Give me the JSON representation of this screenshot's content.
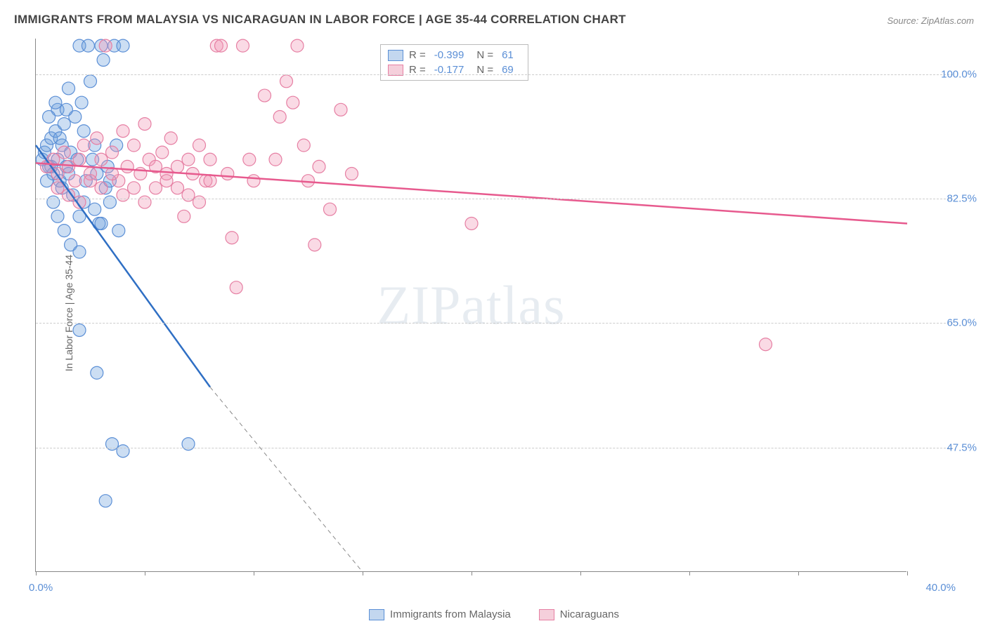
{
  "title": "IMMIGRANTS FROM MALAYSIA VS NICARAGUAN IN LABOR FORCE | AGE 35-44 CORRELATION CHART",
  "source": "Source: ZipAtlas.com",
  "ylabel": "In Labor Force | Age 35-44",
  "watermark": "ZIPatlas",
  "chart": {
    "type": "scatter",
    "background_color": "#ffffff",
    "grid_color": "#cccccc",
    "axis_color": "#888888",
    "xlim": [
      0,
      40
    ],
    "ylim": [
      30,
      105
    ],
    "xtick_positions": [
      0,
      5,
      10,
      15,
      20,
      25,
      30,
      35,
      40
    ],
    "xtick_labels": {
      "left": "0.0%",
      "right": "40.0%"
    },
    "ytick_positions": [
      47.5,
      65.0,
      82.5,
      100.0
    ],
    "ytick_labels": [
      "47.5%",
      "65.0%",
      "82.5%",
      "100.0%"
    ],
    "marker_radius": 9,
    "marker_opacity": 0.45,
    "label_color": "#5b8fd6",
    "label_fontsize": 15,
    "title_fontsize": 17,
    "title_color": "#444444"
  },
  "series": [
    {
      "id": "malaysia",
      "label": "Immigrants from Malaysia",
      "color_fill": "rgba(108,160,220,0.35)",
      "color_stroke": "#5b8fd6",
      "swatch_fill": "#c3d7ef",
      "swatch_border": "#5b8fd6",
      "R": "-0.399",
      "N": "61",
      "regression": {
        "x1": 0,
        "y1": 90,
        "x2_solid": 8.0,
        "y2_solid": 56,
        "x2_dash": 15.0,
        "y2_dash": 30,
        "line_color": "#2f6fc4",
        "line_width": 2.5
      },
      "points": [
        [
          0.3,
          88
        ],
        [
          0.4,
          89
        ],
        [
          0.5,
          90
        ],
        [
          0.6,
          87
        ],
        [
          0.7,
          91
        ],
        [
          0.8,
          86
        ],
        [
          0.9,
          92
        ],
        [
          1.0,
          88
        ],
        [
          1.0,
          95
        ],
        [
          1.1,
          85
        ],
        [
          1.2,
          90
        ],
        [
          1.2,
          84
        ],
        [
          1.3,
          93
        ],
        [
          1.4,
          87
        ],
        [
          1.5,
          98
        ],
        [
          1.5,
          86
        ],
        [
          1.6,
          89
        ],
        [
          1.7,
          83
        ],
        [
          1.8,
          94
        ],
        [
          1.9,
          88
        ],
        [
          2.0,
          80
        ],
        [
          2.0,
          104
        ],
        [
          2.1,
          96
        ],
        [
          2.2,
          92
        ],
        [
          2.3,
          85
        ],
        [
          2.4,
          104
        ],
        [
          2.5,
          99
        ],
        [
          2.6,
          88
        ],
        [
          2.7,
          81
        ],
        [
          2.8,
          86
        ],
        [
          2.9,
          79
        ],
        [
          3.0,
          104
        ],
        [
          3.1,
          102
        ],
        [
          3.2,
          84
        ],
        [
          3.3,
          87
        ],
        [
          3.4,
          82
        ],
        [
          3.6,
          104
        ],
        [
          3.7,
          90
        ],
        [
          3.8,
          78
        ],
        [
          4.0,
          104
        ],
        [
          1.0,
          80
        ],
        [
          1.3,
          78
        ],
        [
          1.6,
          76
        ],
        [
          2.0,
          75
        ],
        [
          2.2,
          82
        ],
        [
          2.7,
          90
        ],
        [
          3.0,
          79
        ],
        [
          3.4,
          85
        ],
        [
          2.0,
          64
        ],
        [
          2.8,
          58
        ],
        [
          3.5,
          48
        ],
        [
          4.0,
          47
        ],
        [
          3.2,
          40
        ],
        [
          7.0,
          48
        ],
        [
          0.8,
          82
        ],
        [
          1.1,
          91
        ],
        [
          1.4,
          95
        ],
        [
          0.6,
          94
        ],
        [
          0.9,
          96
        ],
        [
          0.5,
          85
        ],
        [
          0.7,
          87
        ]
      ]
    },
    {
      "id": "nicaraguans",
      "label": "Nicaraguans",
      "color_fill": "rgba(240,150,180,0.35)",
      "color_stroke": "#e67fa3",
      "swatch_fill": "#f5cfdb",
      "swatch_border": "#e67fa3",
      "R": "-0.177",
      "N": "69",
      "regression": {
        "x1": 0,
        "y1": 87.5,
        "x2_solid": 40,
        "y2_solid": 79,
        "line_color": "#e75a8e",
        "line_width": 2.5
      },
      "points": [
        [
          0.5,
          87
        ],
        [
          0.8,
          88
        ],
        [
          1.0,
          86
        ],
        [
          1.3,
          89
        ],
        [
          1.5,
          87
        ],
        [
          1.8,
          85
        ],
        [
          2.0,
          88
        ],
        [
          2.2,
          90
        ],
        [
          2.5,
          86
        ],
        [
          2.8,
          91
        ],
        [
          3.0,
          88
        ],
        [
          3.2,
          104
        ],
        [
          3.5,
          89
        ],
        [
          3.8,
          85
        ],
        [
          4.0,
          92
        ],
        [
          4.2,
          87
        ],
        [
          4.5,
          90
        ],
        [
          4.8,
          86
        ],
        [
          5.0,
          93
        ],
        [
          5.2,
          88
        ],
        [
          5.5,
          84
        ],
        [
          5.8,
          89
        ],
        [
          6.0,
          86
        ],
        [
          6.2,
          91
        ],
        [
          6.5,
          87
        ],
        [
          6.8,
          80
        ],
        [
          7.0,
          88
        ],
        [
          7.2,
          86
        ],
        [
          7.5,
          90
        ],
        [
          7.8,
          85
        ],
        [
          8.0,
          88
        ],
        [
          8.3,
          104
        ],
        [
          8.5,
          104
        ],
        [
          8.8,
          86
        ],
        [
          9.0,
          77
        ],
        [
          9.2,
          70
        ],
        [
          9.5,
          104
        ],
        [
          9.8,
          88
        ],
        [
          10.0,
          85
        ],
        [
          10.5,
          97
        ],
        [
          11.0,
          88
        ],
        [
          11.2,
          94
        ],
        [
          11.5,
          99
        ],
        [
          11.8,
          96
        ],
        [
          12.0,
          104
        ],
        [
          12.3,
          90
        ],
        [
          12.5,
          85
        ],
        [
          12.8,
          76
        ],
        [
          13.0,
          87
        ],
        [
          13.5,
          81
        ],
        [
          14.0,
          95
        ],
        [
          14.5,
          86
        ],
        [
          1.0,
          84
        ],
        [
          1.5,
          83
        ],
        [
          2.0,
          82
        ],
        [
          2.5,
          85
        ],
        [
          3.0,
          84
        ],
        [
          3.5,
          86
        ],
        [
          4.0,
          83
        ],
        [
          5.0,
          82
        ],
        [
          6.0,
          85
        ],
        [
          6.5,
          84
        ],
        [
          7.0,
          83
        ],
        [
          7.5,
          82
        ],
        [
          8.0,
          85
        ],
        [
          20.0,
          79
        ],
        [
          33.5,
          62
        ],
        [
          4.5,
          84
        ],
        [
          5.5,
          87
        ]
      ]
    }
  ],
  "legend_bottom": [
    {
      "label": "Immigrants from Malaysia",
      "swatch_fill": "#c3d7ef",
      "swatch_border": "#5b8fd6"
    },
    {
      "label": "Nicaraguans",
      "swatch_fill": "#f5cfdb",
      "swatch_border": "#e67fa3"
    }
  ]
}
